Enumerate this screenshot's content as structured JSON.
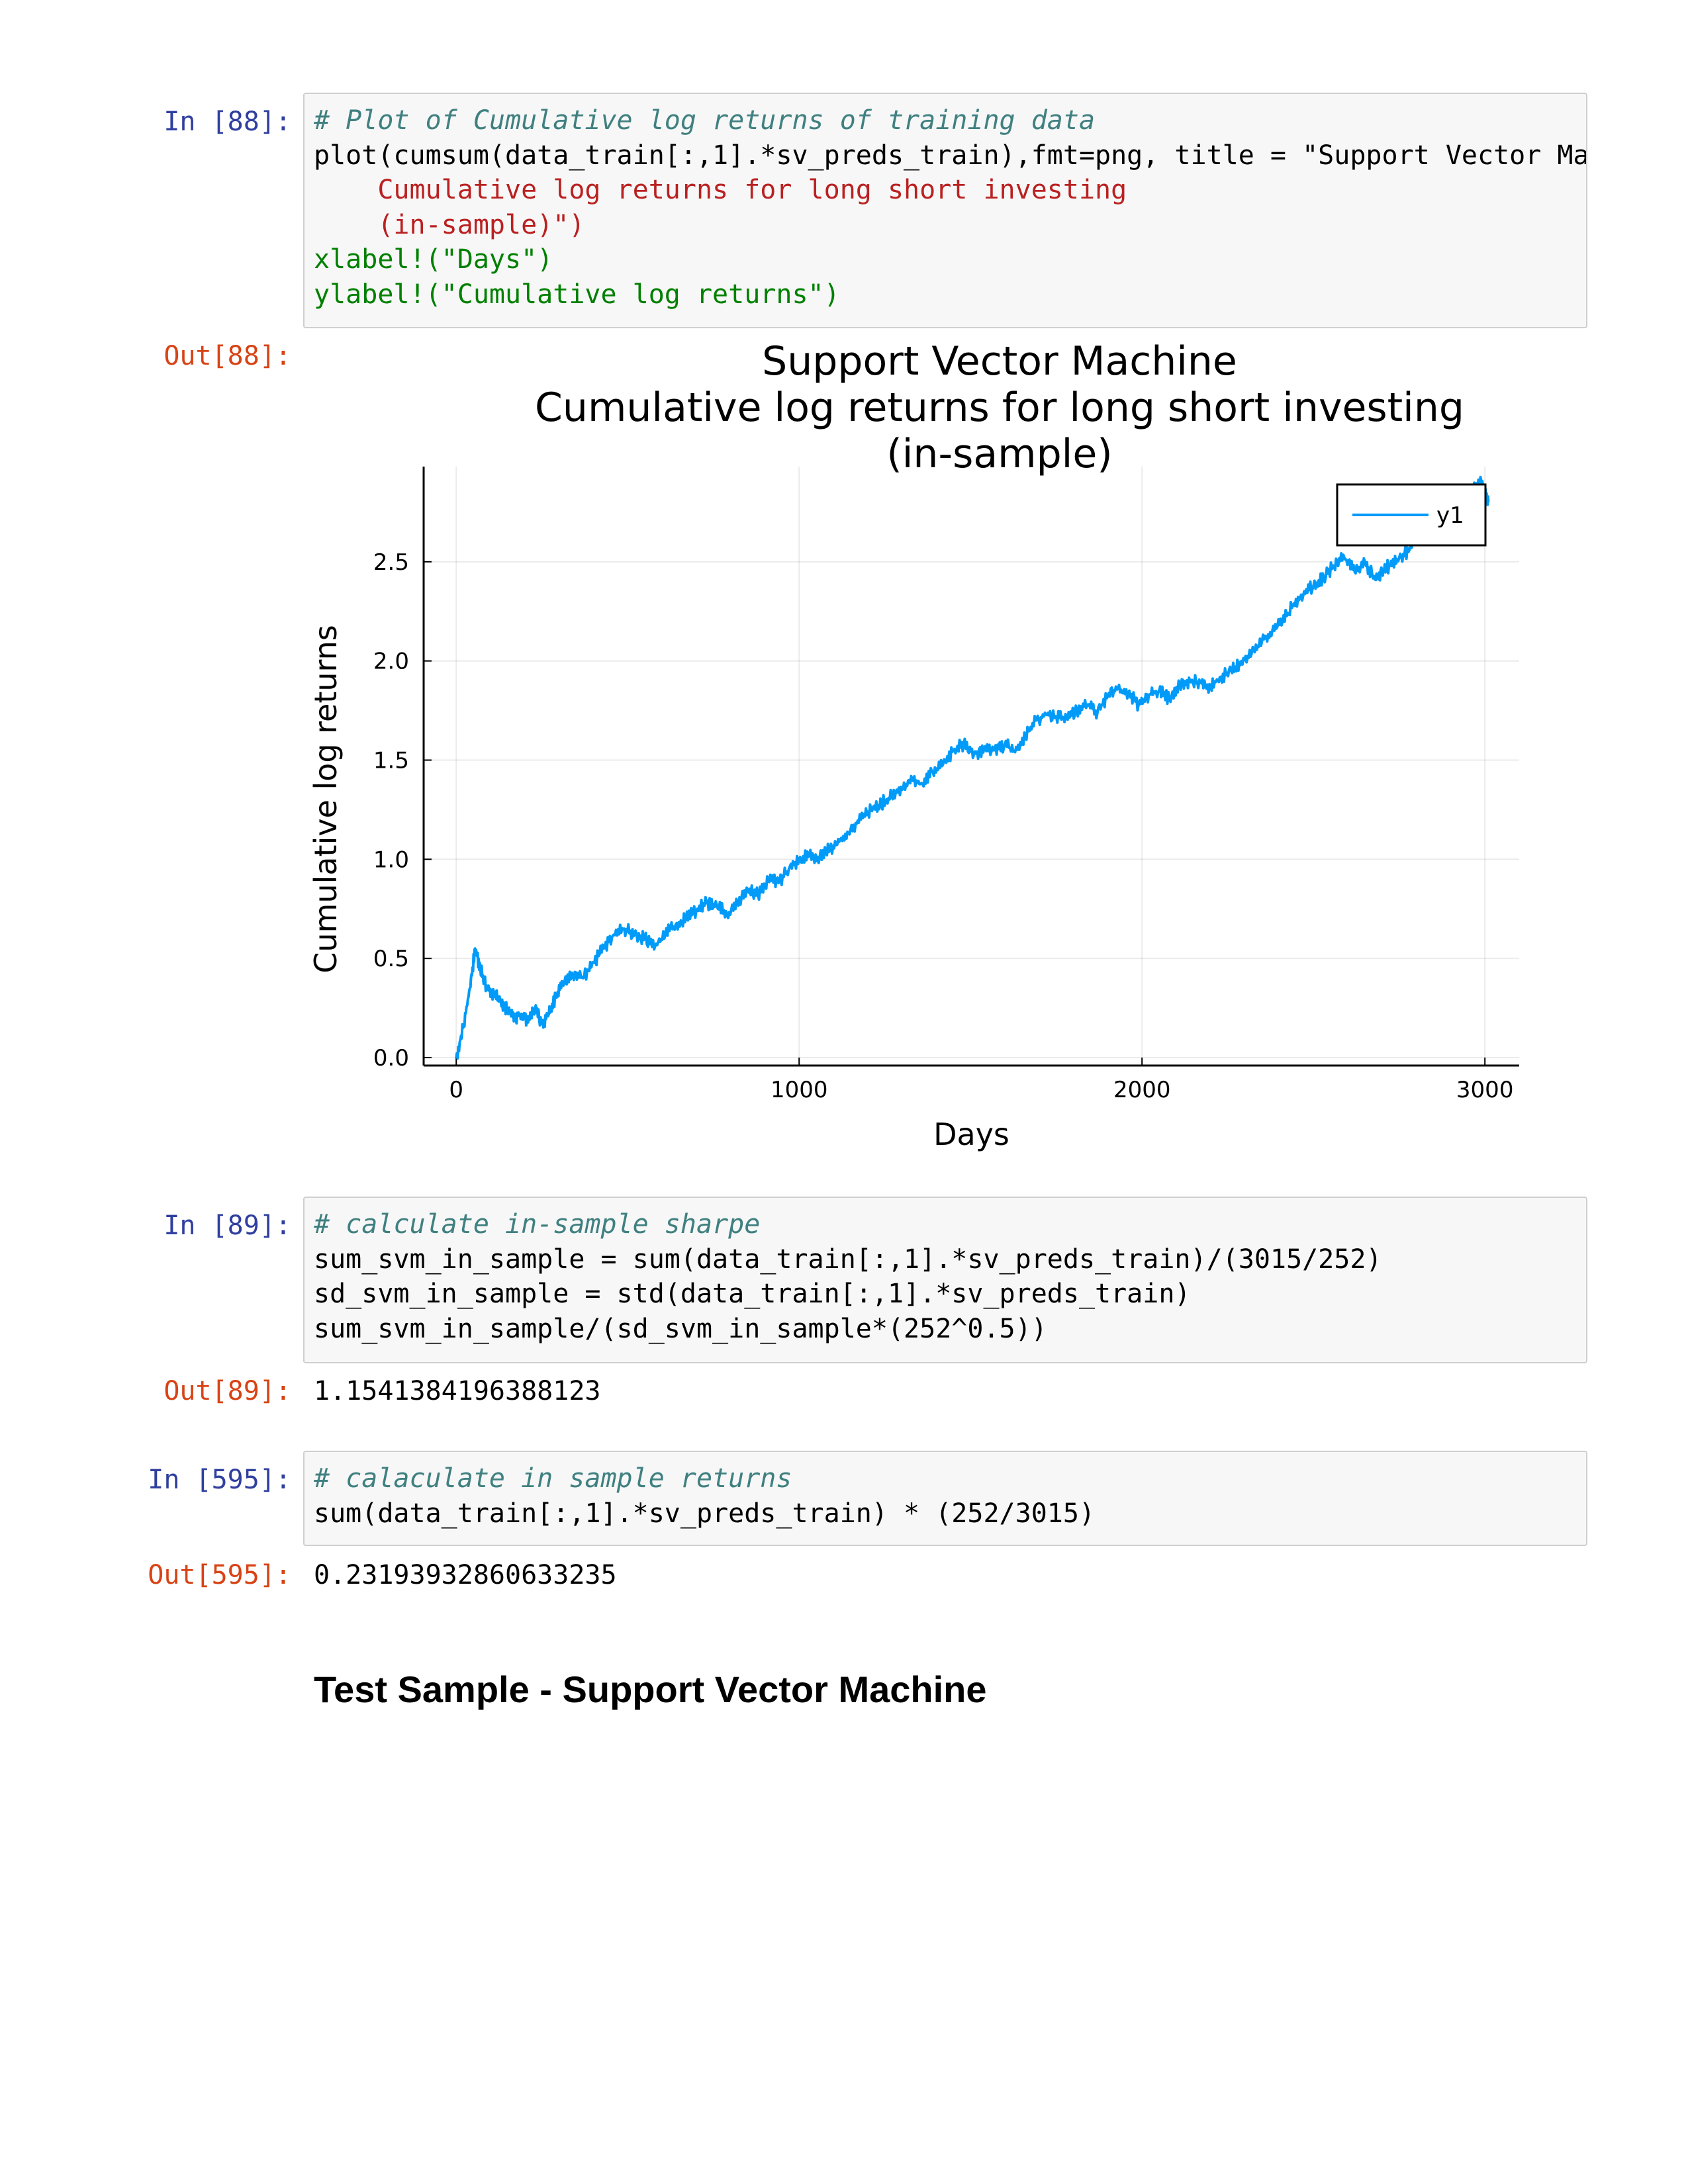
{
  "cells": [
    {
      "in_prompt": "In [88]:",
      "out_prompt": "Out[88]:",
      "code_lines": [
        "# Plot of Cumulative log returns of training data",
        "plot(cumsum(data_train[:,1].*sv_preds_train),fmt=png, title = \"Support Vector Ma",
        "    Cumulative log returns for long short investing",
        "    (in-sample)\")",
        "xlabel!(\"Days\")",
        "ylabel!(\"Cumulative log returns\")"
      ]
    },
    {
      "in_prompt": "In [89]:",
      "out_prompt": "Out[89]:",
      "code_lines": [
        "# calculate in-sample sharpe",
        "sum_svm_in_sample = sum(data_train[:,1].*sv_preds_train)/(3015/252)",
        "sd_svm_in_sample = std(data_train[:,1].*sv_preds_train)",
        "sum_svm_in_sample/(sd_svm_in_sample*(252^0.5))"
      ],
      "output": "1.1541384196388123"
    },
    {
      "in_prompt": "In [595]:",
      "out_prompt": "Out[595]:",
      "code_lines": [
        "# calaculate in sample returns",
        "sum(data_train[:,1].*sv_preds_train) * (252/3015)"
      ],
      "output": "0.23193932860633235"
    }
  ],
  "section_heading": "Test Sample - Support Vector Machine",
  "chart_data": {
    "type": "line",
    "title_lines": [
      "Support Vector Machine",
      "Cumulative log returns for long short investing",
      "(in-sample)"
    ],
    "xlabel": "Days",
    "ylabel": "Cumulative log returns",
    "xlim": [
      -95,
      3100
    ],
    "ylim": [
      -0.04,
      2.98
    ],
    "xticks": [
      0,
      1000,
      2000,
      3000
    ],
    "xtick_labels": [
      "0",
      "1000",
      "2000",
      "3000"
    ],
    "yticks": [
      0.0,
      0.5,
      1.0,
      1.5,
      2.0,
      2.5
    ],
    "ytick_labels": [
      "0.0",
      "0.5",
      "1.0",
      "1.5",
      "2.0",
      "2.5"
    ],
    "grid": true,
    "legend": "top-right",
    "series": [
      {
        "name": "y1",
        "color": "#009af9",
        "x": [
          0,
          20,
          40,
          55,
          70,
          90,
          110,
          130,
          150,
          170,
          190,
          210,
          230,
          250,
          270,
          290,
          310,
          340,
          370,
          400,
          430,
          460,
          490,
          520,
          550,
          580,
          610,
          640,
          670,
          700,
          730,
          760,
          790,
          820,
          850,
          880,
          910,
          940,
          970,
          1000,
          1030,
          1060,
          1090,
          1120,
          1150,
          1180,
          1210,
          1240,
          1270,
          1300,
          1330,
          1360,
          1390,
          1420,
          1450,
          1480,
          1510,
          1540,
          1570,
          1600,
          1630,
          1660,
          1690,
          1720,
          1750,
          1780,
          1810,
          1840,
          1870,
          1900,
          1930,
          1960,
          1990,
          2020,
          2050,
          2080,
          2110,
          2140,
          2170,
          2200,
          2230,
          2260,
          2290,
          2320,
          2350,
          2380,
          2410,
          2440,
          2470,
          2500,
          2530,
          2560,
          2590,
          2620,
          2650,
          2680,
          2700,
          2720,
          2750,
          2780,
          2810,
          2840,
          2870,
          2900,
          2930,
          2960,
          2990,
          3000,
          3010
        ],
        "values": [
          0.0,
          0.15,
          0.35,
          0.55,
          0.45,
          0.35,
          0.32,
          0.28,
          0.24,
          0.2,
          0.22,
          0.18,
          0.25,
          0.17,
          0.22,
          0.3,
          0.38,
          0.42,
          0.4,
          0.48,
          0.55,
          0.62,
          0.65,
          0.62,
          0.6,
          0.56,
          0.62,
          0.67,
          0.7,
          0.74,
          0.78,
          0.77,
          0.72,
          0.78,
          0.85,
          0.82,
          0.9,
          0.88,
          0.95,
          1.0,
          1.02,
          1.01,
          1.05,
          1.1,
          1.15,
          1.2,
          1.25,
          1.28,
          1.32,
          1.35,
          1.4,
          1.38,
          1.44,
          1.48,
          1.55,
          1.58,
          1.53,
          1.56,
          1.55,
          1.58,
          1.54,
          1.62,
          1.7,
          1.73,
          1.72,
          1.71,
          1.75,
          1.78,
          1.74,
          1.82,
          1.86,
          1.84,
          1.78,
          1.83,
          1.85,
          1.81,
          1.88,
          1.9,
          1.89,
          1.87,
          1.92,
          1.95,
          2.0,
          2.04,
          2.1,
          2.15,
          2.2,
          2.28,
          2.33,
          2.38,
          2.42,
          2.48,
          2.52,
          2.45,
          2.5,
          2.41,
          2.45,
          2.48,
          2.52,
          2.56,
          2.62,
          2.68,
          2.72,
          2.75,
          2.8,
          2.86,
          2.9,
          2.84,
          2.8
        ]
      }
    ]
  }
}
